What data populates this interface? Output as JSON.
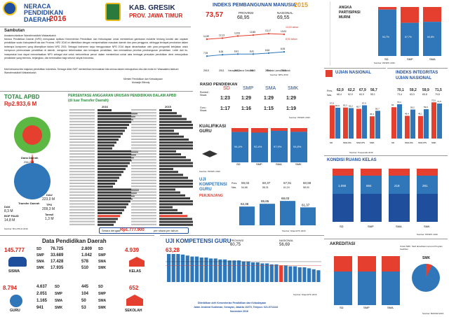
{
  "header": {
    "title_line1": "NERACA",
    "title_line2": "PENDIDIKAN",
    "title_line3": "DAERAH",
    "year": "2016",
    "kab": "KAB. GRESIK",
    "prov": "PROV. JAWA TIMUR"
  },
  "sambutan": {
    "title": "Sambutan",
    "p1": "Assalamu'alaikum Warrahmatullahi Wabarakatuh",
    "p2": "Neraca Pendidikan Daerah (NPD) merupakan Aplikasi Kementerian Pendidikan dan Kebudayaan untuk memberikan gambaran mutakhir tentang kondisi dan capaian pendidikan suatu Kabupaten/Kota dan Provinsi. NPD 2016 ini diterbitkan dengan memperhatikan masukan daerah dan para pengguna, sehingga terdapat perubahan dalam beberapa komponen yang ditampilkan dalam NPD 2015. Sebagai instrumen saya menggunakan NPD 2016 dapat dimanfaatkan oleh para pengambil kebijakan untuk menyusun perencanaan pendidikan di daerah, mengukur keberhasilan dan kemajuan pendidikan, dan memastikan prioritas pembangunan pendidikan. Lebih dari itu, masyarakat luas dapat memanfaatkan NPD sebagai alat untuk berkontribusi penuh dalam memberikan solusi atas berbagai persoalan pendidikan demi mewujudkan pendidikan yang bermutu, terjangkau, dan berkeadilan bagi seluruh rakyat Indonesia.",
    "p3": "Mari bersama kita majukan pendidikan Indonesia. Semoga Allah SWT memberikan kemudahan kita semua dalam mewujudkan cita-cita mulia ini. Wassalamu'alaikum Warrahmatullahi Wabarakatuh",
    "sign1": "Menteri Pendidikan dan Kebudayaan",
    "sign2": "Muhadjir Effendy"
  },
  "ipm": {
    "title": "INDEKS PEMBANGUNAN MANUSIA",
    "year": "2015",
    "value": "73,57",
    "prov_label": "PROVINSI",
    "prov_value": "68,95",
    "nas_label": "NASIONAL",
    "nas_value": "69,55",
    "legend1": "Harapan Lama Sekolah",
    "legend2": "Rerata Lama Sekolah",
    "source": "Sumber: BPS 2015",
    "hls_last": "13,03 tahun",
    "rls_last": "8,93 tahun"
  },
  "apk": {
    "title": "ANGKA",
    "title2": "PARTISIPASI",
    "title3": "MURNI",
    "source": "Sumber: PDSPK 2016"
  },
  "apbd": {
    "title": "TOTAL APBD",
    "value": "Rp2.933,6 M",
    "dana_label": "Dana Daerah",
    "dana_value": "256,2 M",
    "transfer_label": "Transfer Daerah",
    "transfer_value": "677,4 M",
    "dak": "DAK",
    "dak_v": "8,3 M",
    "bop": "BOP PAUD",
    "bop_v": "14,8 M",
    "dau": "DAU",
    "dau_v": "223,0 M",
    "tpg": "TPG",
    "tpg_v": "209,3 M",
    "tamsil": "Tamsil",
    "tamsil_v": "1,3 M",
    "source": "Sumber: Biro PKLN 2016"
  },
  "persen": {
    "title": "PERSENTASE ANGGARAN URUSAN PENDIDIKAN DALAM APBD",
    "subtitle": "(di luar Transfer Daerah)",
    "y2016": "2016",
    "y2015": "2015",
    "setara": "Setara dengan:",
    "setara_val": "Rp1.777.900",
    "setara_suffix": "per siswa per tahun"
  },
  "rasio": {
    "title": "RASIO PENDIDIKAN",
    "sd": "SD",
    "smp": "SMP",
    "sma": "SMA",
    "smk": "SMK",
    "rombel_label": "Rombel : Siswa",
    "guru_label": "Guru : Siswa",
    "r1": [
      "1:23",
      "1:29",
      "1:29",
      "1:29"
    ],
    "r2": [
      "1:17",
      "1:16",
      "1:15",
      "1:19"
    ],
    "source": "Sumber: PDSPK 2016"
  },
  "kualifikasi": {
    "title": "KUALIFIKASI",
    "title2": "GURU",
    "source": "Sumber: PDSPK 2016"
  },
  "ujikom": {
    "title": "UJI",
    "title2": "KOMPETENSI",
    "title3": "GURU",
    "sub": "PERJENJANG",
    "pres": "Pres.",
    "nas": "Nas.",
    "v1": "59,02",
    "v2": "60,37",
    "v3": "67,91",
    "v4": "60,59",
    "n1": "54,68",
    "n2": "58,31",
    "n3": "61,24",
    "n4": "58,00",
    "b1": "62,36",
    "b2": "65,65",
    "b3": "69,03",
    "b4": "61,37",
    "source": "Sumber: DitjenGTK 2016"
  },
  "un": {
    "title": "UJIAN NASIONAL",
    "labels": [
      "SD",
      "SMA IPA",
      "SMA IPS",
      "SMK"
    ],
    "pres": [
      "62,9",
      "62,2",
      "67,9",
      "56,7"
    ],
    "nas": [
      "68,4",
      "52,9",
      "60,9",
      "55,1"
    ],
    "source": "Sumber: Puspendik 2016",
    "lg1": "2015",
    "lg2": "2016"
  },
  "iiun": {
    "title": "INDEKS INTEGRITAS",
    "title2": "UJIAN NASIONAL",
    "pres": [
      "70,1",
      "59,2",
      "59,9",
      "71,5"
    ],
    "nas": [
      "73,4",
      "63,3",
      "65,8",
      "79,8"
    ]
  },
  "kondisi": {
    "title": "KONDISI RUANG KELAS",
    "labels": [
      "SD",
      "SMP",
      "SMA",
      "SMK"
    ],
    "source": "Sumber: PDSPK 2016",
    "lg1": "Baik",
    "lg2": "Rusak Ringan",
    "lg3": "Rusak Sedang",
    "lg4": "Rusak Berat"
  },
  "dpd": {
    "title": "Data Pendidikan Daerah",
    "siswa": "SISWA",
    "siswa_total": "145.777",
    "siswa_sd": "76.725",
    "siswa_smp": "33.689",
    "siswa_sma": "17.428",
    "siswa_smk": "17.935",
    "guru": "GURU",
    "guru_total": "8.794",
    "guru_sd": "4.637",
    "guru_smp": "2.051",
    "guru_sma": "1.165",
    "guru_smk": "941",
    "kelas": "KELAS",
    "kelas_total": "4.939",
    "kelas_sd": "2.809",
    "kelas_smp": "1.042",
    "kelas_sma": "578",
    "kelas_smk": "510",
    "sekolah": "SEKOLAH",
    "sekolah_total": "652",
    "sekolah_sd": "445",
    "sekolah_smp": "104",
    "sekolah_sma": "50",
    "sekolah_smk": "53",
    "l_sd": "SD",
    "l_smp": "SMP",
    "l_sma": "SMA",
    "l_smk": "SMK"
  },
  "ukg": {
    "title": "UJI KOMPETENSI GURU",
    "value": "63,28",
    "prov_label": "PROVINSI",
    "prov_value": "60,75",
    "nas_label": "NASIONAL",
    "nas_value": "56,69",
    "source": "Sumber: DitjenGTK 2016",
    "footer1": "Diterbitkan oleh Kementerian Pendidikan dan Kebudayaan",
    "footer2": "Jalan Jenderal Sudirman, Senayan, Jakarta 10270, Telepon: 021-5711144",
    "footer3": "November 2016"
  },
  "akreditasi": {
    "title": "AKREDITASI",
    "note": "Untuk SMK, hasil akreditasi menurut Program Keahlian",
    "smk": "SMK",
    "source": "Sumber: BANSM 2016",
    "labels": [
      "SD",
      "SMP",
      "SMA"
    ]
  },
  "chart_data": [
    {
      "type": "line",
      "title": "INDEKS PEMBANGUNAN MANUSIA",
      "categories": [
        "2010",
        "2011",
        "2012",
        "2013",
        "2014",
        "2015"
      ],
      "series": [
        {
          "name": "Harapan Lama Sekolah",
          "values": [
            11.89,
            12.13,
            12.63,
            12.85,
            13.17,
            13.03
          ]
        },
        {
          "name": "Rerata Lama Sekolah",
          "values": [
            7.93,
            8.26,
            8.41,
            8.41,
            8.63,
            8.93
          ]
        }
      ]
    },
    {
      "type": "bar",
      "title": "ANGKA PARTISIPASI MURNI",
      "categories": [
        "SD",
        "SMP",
        "SMA"
      ],
      "values": [
        94.7,
        67.7,
        69.8
      ]
    },
    {
      "type": "bar",
      "title": "KUALIFIKASI GURU",
      "categories": [
        "SD",
        "SMP",
        "SMA",
        "SMK"
      ],
      "values": [
        94.4,
        92.4,
        97.9,
        94.8
      ]
    },
    {
      "type": "bar",
      "title": "UJI KOMPETENSI GURU PERJENJANG",
      "categories": [
        "SD",
        "SMP",
        "SMA",
        "SMK"
      ],
      "values": [
        62.36,
        65.65,
        69.03,
        61.37
      ]
    },
    {
      "type": "bar",
      "title": "UJIAN NASIONAL",
      "categories": [
        "SD",
        "SMA IPA",
        "SMA IPS",
        "SMK"
      ],
      "series": [
        {
          "name": "2015",
          "values": [
            67.8,
            63.3,
            60.7,
            45.4
          ]
        },
        {
          "name": "2016",
          "values": [
            62.9,
            62.2,
            67.9,
            56.7
          ]
        }
      ]
    },
    {
      "type": "bar",
      "title": "INDEKS INTEGRITAS UJIAN NASIONAL",
      "categories": [
        "SD",
        "SMA IPA",
        "SMA IPS",
        "SMK"
      ],
      "series": [
        {
          "name": "2015",
          "values": [
            64.0,
            46.4,
            46.1,
            73.9
          ]
        },
        {
          "name": "2016",
          "values": [
            70.1,
            59.2,
            59.9,
            71.5
          ]
        }
      ]
    },
    {
      "type": "bar",
      "title": "KONDISI RUANG KELAS",
      "categories": [
        "SD",
        "SMP",
        "SMA",
        "SMK"
      ],
      "values": [
        1090,
        884,
        218,
        281
      ]
    },
    {
      "type": "bar",
      "title": "UJI KOMPETENSI GURU",
      "values": [
        72,
        70,
        69,
        68,
        67,
        66,
        66,
        65,
        65,
        64,
        64,
        63,
        63,
        62,
        62,
        62,
        61,
        61,
        60,
        60,
        59,
        59,
        58,
        58,
        57,
        57,
        56,
        56,
        55,
        55,
        54,
        53,
        52
      ]
    }
  ]
}
